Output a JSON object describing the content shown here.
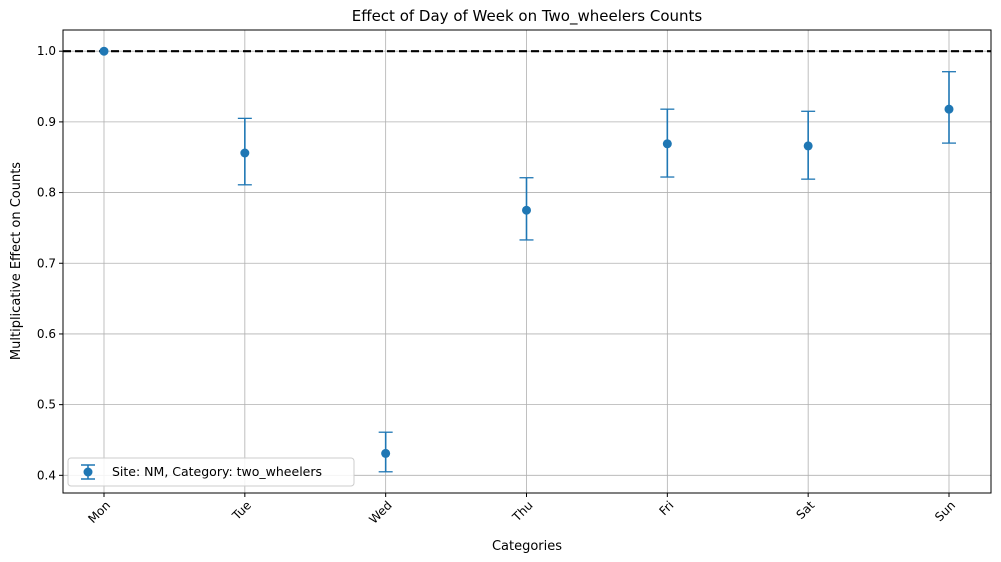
{
  "chart_data": {
    "type": "scatter",
    "title": "Effect of Day of Week on Two_wheelers Counts",
    "xlabel": "Categories",
    "ylabel": "Multiplicative Effect on Counts",
    "categories": [
      "Mon",
      "Tue",
      "Wed",
      "Thu",
      "Fri",
      "Sat",
      "Sun"
    ],
    "series": [
      {
        "name": "Site: NM, Category: two_wheelers",
        "color": "#1f77b4",
        "values": [
          1.0,
          0.856,
          0.431,
          0.775,
          0.869,
          0.866,
          0.918
        ],
        "lower": [
          1.0,
          0.811,
          0.405,
          0.733,
          0.822,
          0.819,
          0.87
        ],
        "upper": [
          1.0,
          0.905,
          0.461,
          0.821,
          0.918,
          0.915,
          0.971
        ]
      }
    ],
    "reference_line": {
      "y": 1.0,
      "style": "dashed",
      "color": "#000000"
    },
    "yticks": [
      "0.4",
      "0.5",
      "0.6",
      "0.7",
      "0.8",
      "0.9",
      "1.0"
    ],
    "ylim": [
      0.375,
      1.03
    ],
    "grid": true,
    "legend_position": "lower-left",
    "xtick_rotation": 45
  }
}
